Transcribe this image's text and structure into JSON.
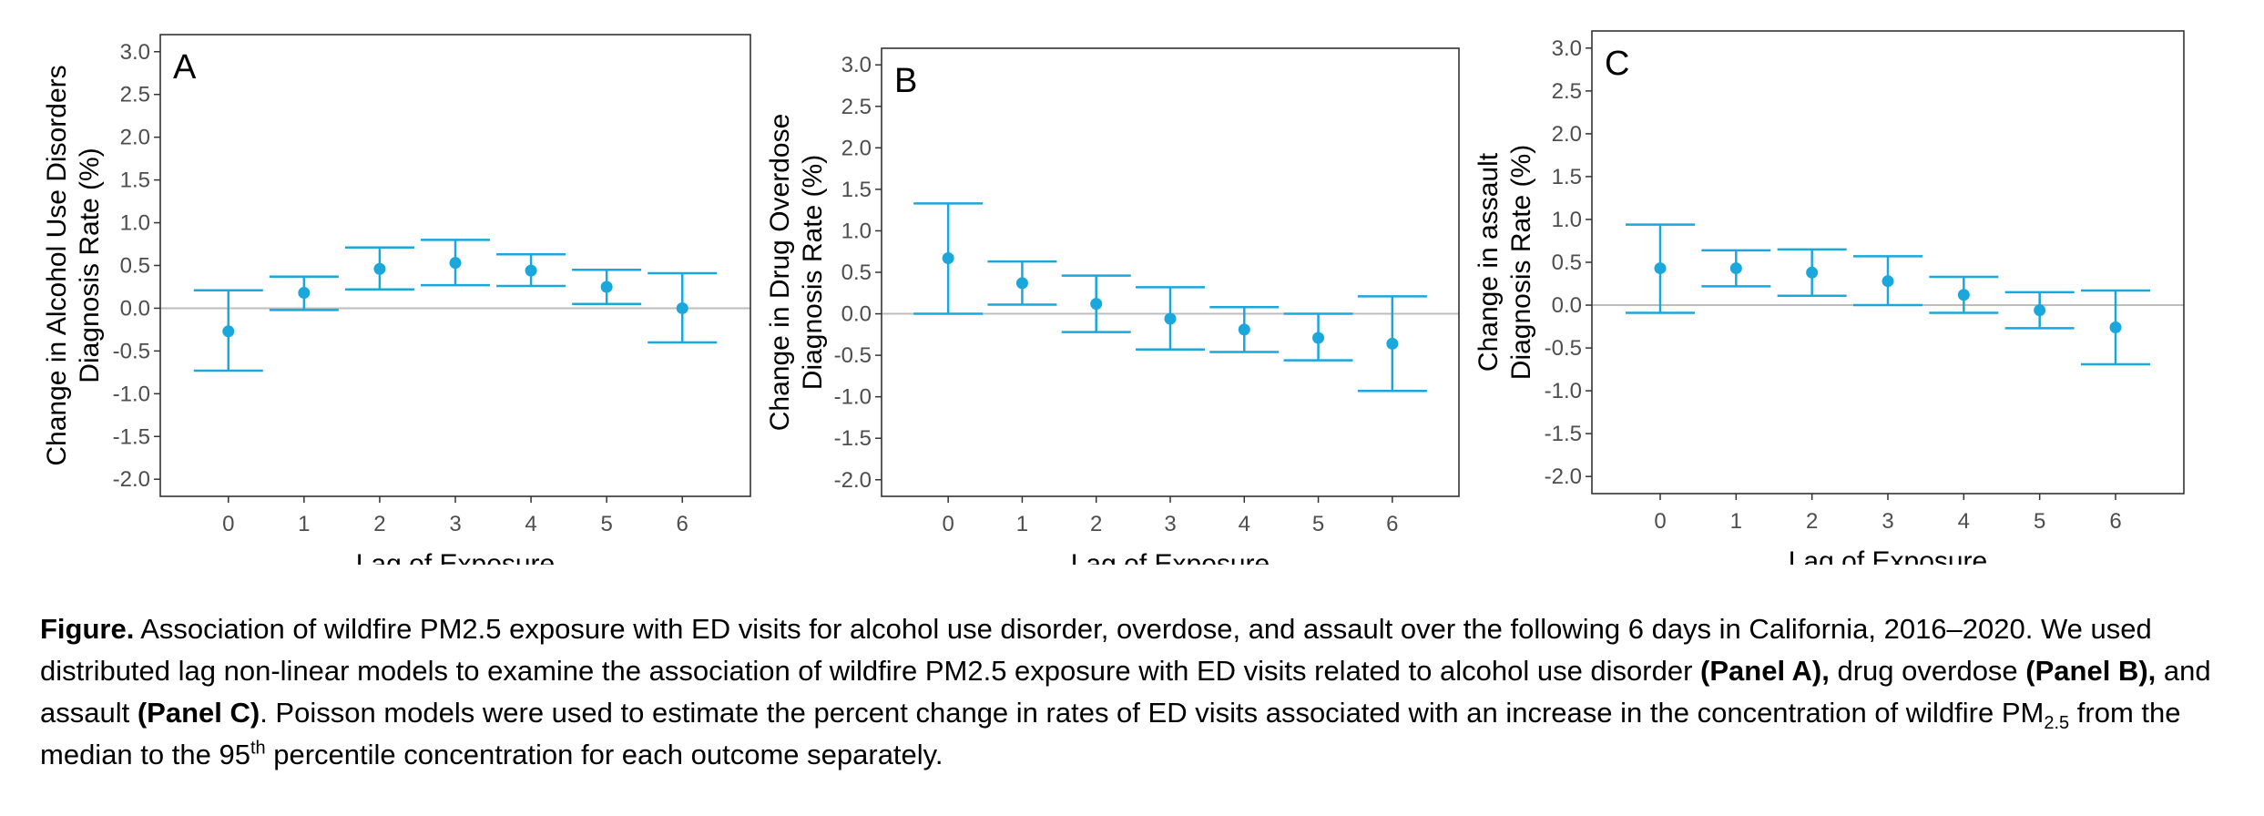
{
  "chart_data": [
    {
      "type": "scatter",
      "panel_label": "A",
      "xlabel": "Lag of Exposure",
      "ylabel_lines": [
        "Change in Alcohol Use Disorders",
        "Diagnosis Rate (%)"
      ],
      "categories": [
        "0",
        "1",
        "2",
        "3",
        "4",
        "5",
        "6"
      ],
      "estimate": [
        -0.27,
        0.18,
        0.46,
        0.53,
        0.44,
        0.25,
        0.0
      ],
      "lower": [
        -0.73,
        -0.02,
        0.22,
        0.27,
        0.26,
        0.05,
        -0.4
      ],
      "upper": [
        0.21,
        0.37,
        0.71,
        0.8,
        0.63,
        0.45,
        0.41
      ],
      "ylim": [
        -2.2,
        3.2
      ],
      "yticks": [
        "-2.0",
        "-1.5",
        "-1.0",
        "-0.5",
        "0.0",
        "0.5",
        "1.0",
        "1.5",
        "2.0",
        "2.5",
        "3.0"
      ],
      "reference_line": 0,
      "grid": false,
      "color": "#1aa7dc"
    },
    {
      "type": "scatter",
      "panel_label": "B",
      "xlabel": "Lag of Exposure",
      "ylabel_lines": [
        "Change in Drug Overdose",
        "Diagnosis Rate (%)"
      ],
      "categories": [
        "0",
        "1",
        "2",
        "3",
        "4",
        "5",
        "6"
      ],
      "estimate": [
        0.67,
        0.37,
        0.12,
        -0.06,
        -0.19,
        -0.29,
        -0.36
      ],
      "lower": [
        0.0,
        0.11,
        -0.22,
        -0.43,
        -0.46,
        -0.56,
        -0.93
      ],
      "upper": [
        1.33,
        0.63,
        0.46,
        0.32,
        0.08,
        0.0,
        0.21
      ],
      "ylim": [
        -2.2,
        3.2
      ],
      "yticks": [
        "-2.0",
        "-1.5",
        "-1.0",
        "-0.5",
        "0.0",
        "0.5",
        "1.0",
        "1.5",
        "2.0",
        "2.5",
        "3.0"
      ],
      "reference_line": 0,
      "grid": false,
      "color": "#1aa7dc"
    },
    {
      "type": "scatter",
      "panel_label": "C",
      "xlabel": "Lag of Exposure",
      "ylabel_lines": [
        "Change in assault",
        "Diagnosis Rate (%)"
      ],
      "categories": [
        "0",
        "1",
        "2",
        "3",
        "4",
        "5",
        "6"
      ],
      "estimate": [
        0.43,
        0.43,
        0.38,
        0.28,
        0.12,
        -0.06,
        -0.26
      ],
      "lower": [
        -0.09,
        0.22,
        0.11,
        0.0,
        -0.09,
        -0.27,
        -0.69
      ],
      "upper": [
        0.94,
        0.64,
        0.65,
        0.57,
        0.33,
        0.15,
        0.17
      ],
      "ylim": [
        -2.2,
        3.2
      ],
      "yticks": [
        "-2.0",
        "-1.5",
        "-1.0",
        "-0.5",
        "0.0",
        "0.5",
        "1.0",
        "1.5",
        "2.0",
        "2.5",
        "3.0"
      ],
      "reference_line": 0,
      "grid": false,
      "color": "#1aa7dc"
    }
  ],
  "caption": {
    "segments": [
      {
        "text": "Figure.",
        "bold": true
      },
      {
        "text": " Association of wildfire PM2.5 exposure with ED visits for alcohol use disorder, overdose, and assault over the following 6 days in California, 2016–2020. We used distributed lag non-linear models to examine the association of wildfire PM2.5 exposure with ED visits related to alcohol use disorder ",
        "bold": false
      },
      {
        "text": "(Panel A),",
        "bold": true
      },
      {
        "text": " drug overdose ",
        "bold": false
      },
      {
        "text": "(Panel B),",
        "bold": true
      },
      {
        "text": " and assault ",
        "bold": false
      },
      {
        "text": "(Panel C)",
        "bold": true
      },
      {
        "text": ". Poisson models were used to estimate the percent change in rates of ED visits associated with an increase in the concentration of wildfire PM",
        "bold": false
      },
      {
        "text": "2.5",
        "bold": false,
        "sub": true
      },
      {
        "text": " from the median to the 95",
        "bold": false
      },
      {
        "text": "th",
        "bold": false,
        "sup": true
      },
      {
        "text": " percentile concentration for each outcome separately.",
        "bold": false
      }
    ]
  }
}
